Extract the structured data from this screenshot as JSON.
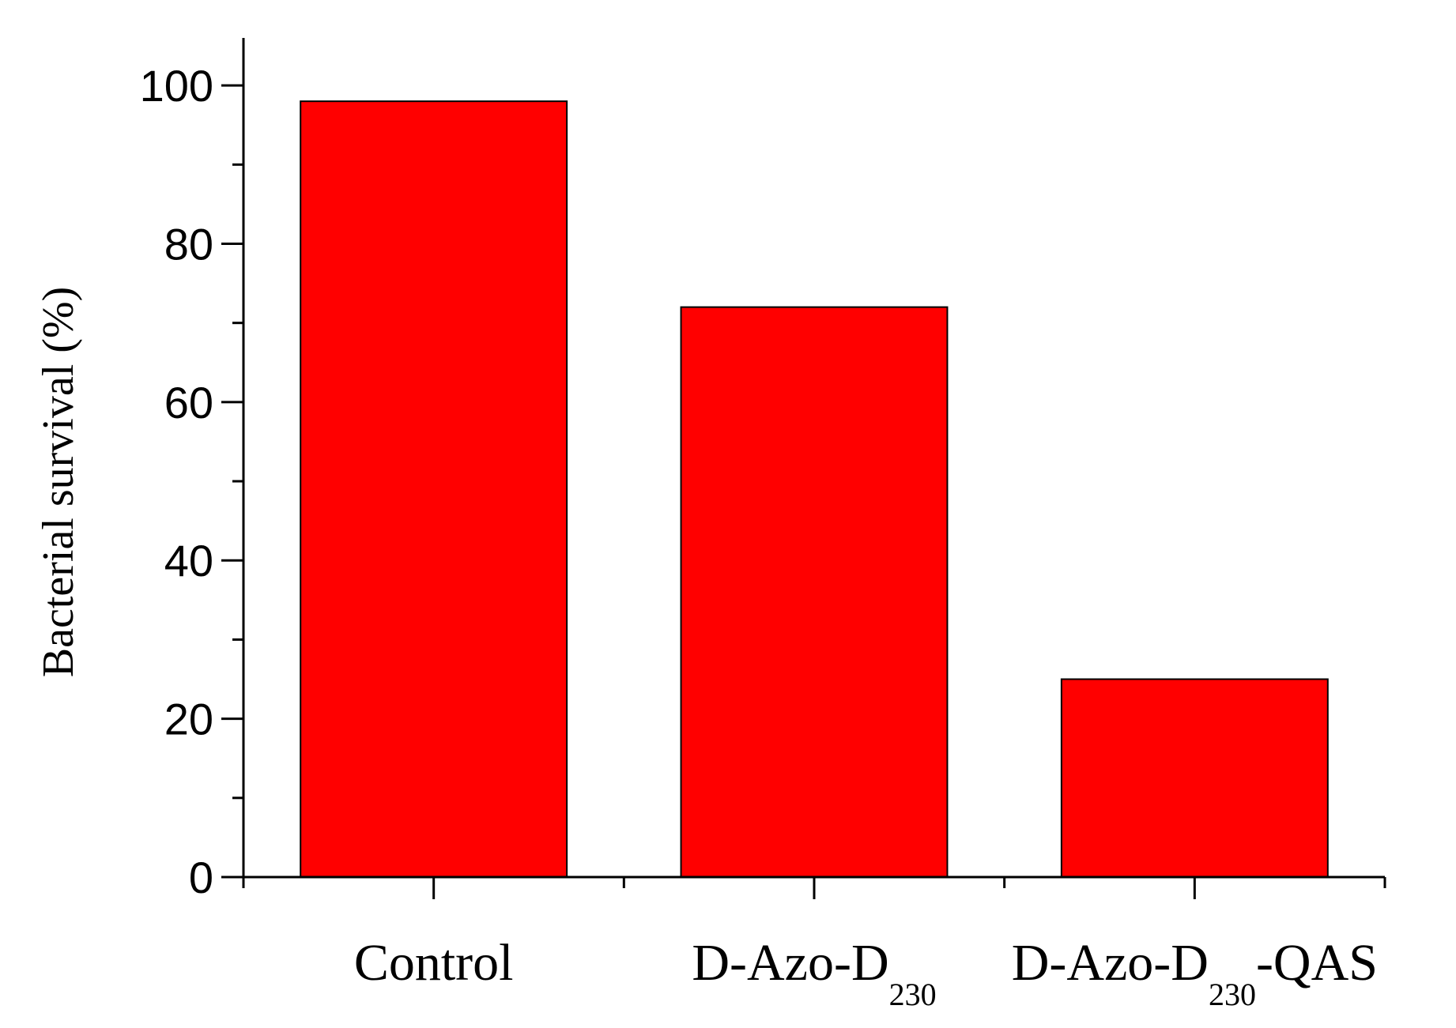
{
  "chart_data": {
    "type": "bar",
    "title": "",
    "xlabel": "",
    "ylabel": "Bacterial survival (%)",
    "categories": [
      {
        "main": "Control",
        "sub": "",
        "suffix": ""
      },
      {
        "main": "D-Azo-D",
        "sub": "230",
        "suffix": ""
      },
      {
        "main": "D-Azo-D",
        "sub": "230",
        "suffix": "-QAS"
      }
    ],
    "values": [
      98,
      72,
      25
    ],
    "ylim": [
      0,
      106
    ],
    "yticks": [
      0,
      20,
      40,
      60,
      80,
      100
    ],
    "y_minor_step": 10,
    "bar_color": "#ff0000",
    "bar_edge_color": "#000000",
    "grid": false,
    "legend": "none"
  }
}
